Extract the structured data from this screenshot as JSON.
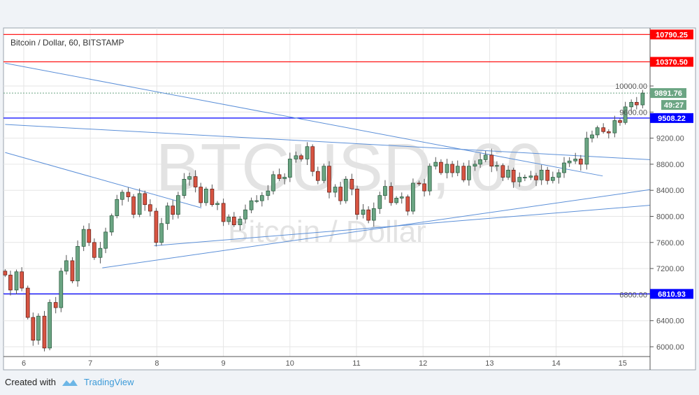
{
  "chart_data": {
    "type": "candlestick",
    "title": "Bitcoin / Dollar, 60, BITSTAMP",
    "watermark_symbol": "BTCUSD, 60",
    "watermark_name": "Bitcoin / Dollar",
    "x_ticks": [
      "6",
      "7",
      "8",
      "9",
      "10",
      "11",
      "12",
      "13",
      "14",
      "15"
    ],
    "y_ticks": [
      6000,
      6400,
      6800,
      7200,
      7600,
      8000,
      8400,
      8800,
      9200,
      9600,
      10000
    ],
    "ylim": [
      5850,
      10850
    ],
    "xlim": [
      5.72,
      15.42
    ],
    "grid": true,
    "x": [
      5.72,
      5.8,
      5.89,
      5.97,
      6.06,
      6.14,
      6.22,
      6.31,
      6.39,
      6.48,
      6.56,
      6.64,
      6.73,
      6.81,
      6.9,
      6.98,
      7.06,
      7.15,
      7.23,
      7.32,
      7.4,
      7.48,
      7.57,
      7.65,
      7.74,
      7.82,
      7.9,
      7.99,
      8.07,
      8.16,
      8.24,
      8.32,
      8.41,
      8.49,
      8.58,
      8.66,
      8.74,
      8.83,
      8.91,
      9.0,
      9.08,
      9.16,
      9.25,
      9.33,
      9.42,
      9.5,
      9.58,
      9.67,
      9.75,
      9.84,
      9.92,
      10.0,
      10.09,
      10.17,
      10.26,
      10.34,
      10.42,
      10.51,
      10.59,
      10.68,
      10.76,
      10.84,
      10.93,
      11.01,
      11.1,
      11.18,
      11.26,
      11.35,
      11.43,
      11.52,
      11.6,
      11.68,
      11.77,
      11.85,
      11.94,
      12.02,
      12.1,
      12.19,
      12.27,
      12.36,
      12.44,
      12.52,
      12.61,
      12.69,
      12.78,
      12.86,
      12.94,
      13.03,
      13.11,
      13.2,
      13.28,
      13.36,
      13.45,
      13.53,
      13.62,
      13.7,
      13.78,
      13.87,
      13.95,
      14.04,
      14.12,
      14.2,
      14.29,
      14.37,
      14.46,
      14.54,
      14.62,
      14.71,
      14.79,
      14.88,
      14.96,
      15.04,
      15.13,
      15.21,
      15.3
    ],
    "close": [
      7100,
      6870,
      7150,
      6900,
      6450,
      6100,
      6470,
      5980,
      6680,
      6600,
      7160,
      7320,
      7010,
      7540,
      7800,
      7600,
      7370,
      7510,
      7760,
      8010,
      8260,
      8370,
      8300,
      8030,
      8350,
      8180,
      8080,
      7600,
      7890,
      8160,
      8030,
      8320,
      8570,
      8610,
      8450,
      8210,
      8420,
      8180,
      8200,
      7920,
      7990,
      7870,
      7960,
      8100,
      8240,
      8240,
      8320,
      8390,
      8640,
      8580,
      8600,
      8880,
      8930,
      8880,
      9070,
      8690,
      8550,
      8770,
      8370,
      8450,
      8240,
      8570,
      8420,
      8030,
      8100,
      7940,
      8120,
      8320,
      8460,
      8210,
      8280,
      8300,
      8080,
      8510,
      8500,
      8390,
      8770,
      8830,
      8670,
      8800,
      8670,
      8770,
      8560,
      8770,
      8800,
      8870,
      8940,
      8770,
      8780,
      8600,
      8710,
      8530,
      8600,
      8600,
      8620,
      8560,
      8710,
      8550,
      8600,
      8670,
      8820,
      8850,
      8880,
      8800,
      9200,
      9250,
      9360,
      9300,
      9280,
      9470,
      9440,
      9680,
      9750,
      9710,
      9891.76
    ],
    "horizontal_levels": [
      {
        "price": "10790.25",
        "color": "#ff0000"
      },
      {
        "price": "10370.50",
        "color": "#ff0000"
      },
      {
        "price": "9508.22",
        "color": "#0000ff"
      },
      {
        "price": "6810.93",
        "color": "#0000ff"
      }
    ],
    "trend_lines": [
      [
        [
          5.72,
          10350
        ],
        [
          14.7,
          8620
        ]
      ],
      [
        [
          5.72,
          9410
        ],
        [
          15.41,
          8870
        ]
      ],
      [
        [
          5.72,
          8980
        ],
        [
          8.67,
          8130
        ]
      ],
      [
        [
          7.18,
          7210
        ],
        [
          15.41,
          8410
        ]
      ],
      [
        [
          7.96,
          7550
        ],
        [
          15.41,
          8170
        ]
      ]
    ],
    "last_price": "9891.76",
    "countdown": "49:27",
    "colors": {
      "up": "#6ba583",
      "down": "#d75442",
      "trend": "#5b8fd8",
      "last": "#6ba583"
    }
  },
  "footer": {
    "created_with": "Created with",
    "brand": "TradingView"
  }
}
